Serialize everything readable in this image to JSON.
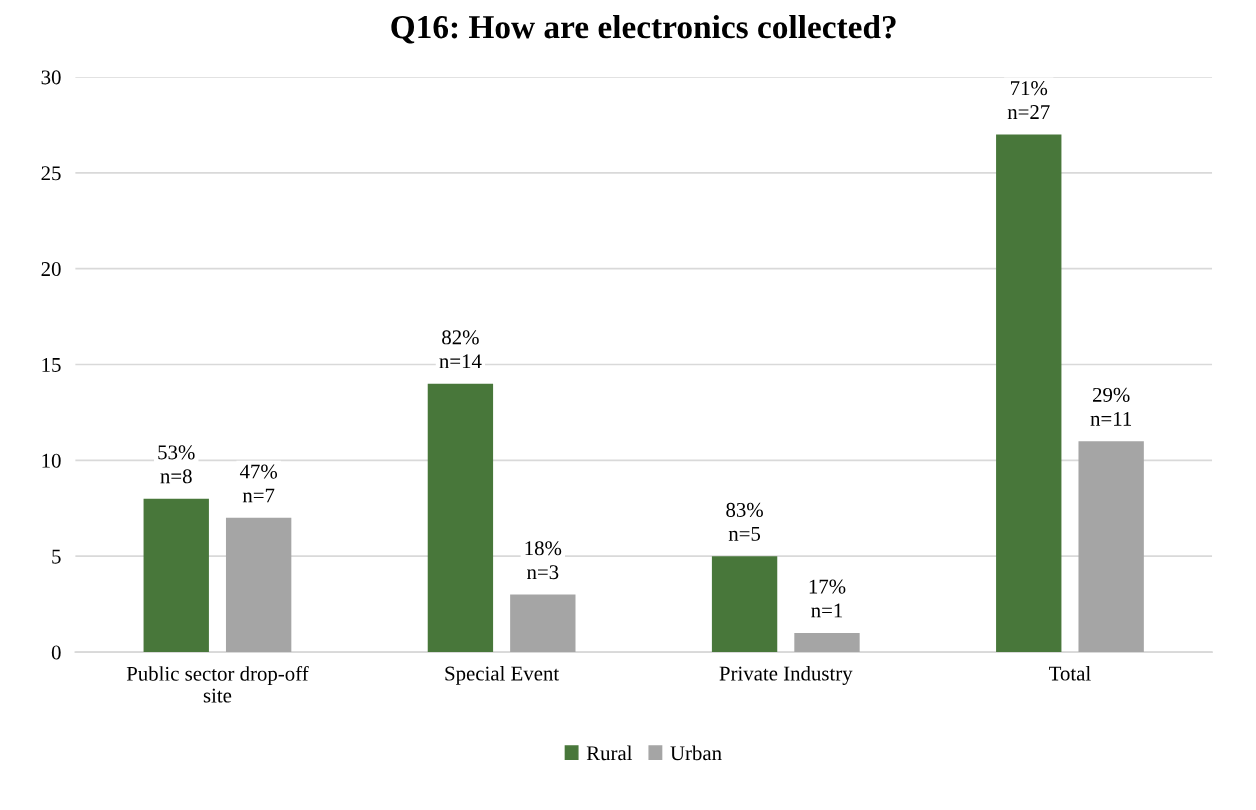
{
  "chart_data": {
    "type": "bar",
    "title": "Q16: How are electronics collected?",
    "categories": [
      "Public sector drop-off\nsite",
      "Special Event",
      "Private Industry",
      "Total"
    ],
    "series": [
      {
        "name": "Rural",
        "color": "#48773a",
        "values": [
          8,
          14,
          5,
          27
        ],
        "value_labels": [
          "53%\nn=8",
          "82%\nn=14",
          "83%\nn=5",
          "71%\nn=27"
        ]
      },
      {
        "name": "Urban",
        "color": "#a5a5a5",
        "values": [
          7,
          3,
          1,
          11
        ],
        "value_labels": [
          "47%\nn=7",
          "18%\nn=3",
          "17%\nn=1",
          "29%\nn=11"
        ]
      }
    ],
    "ylim": [
      0,
      30
    ],
    "yticks": [
      0,
      5,
      10,
      15,
      20,
      25,
      30
    ],
    "grid": "y",
    "legend": "bottom"
  }
}
